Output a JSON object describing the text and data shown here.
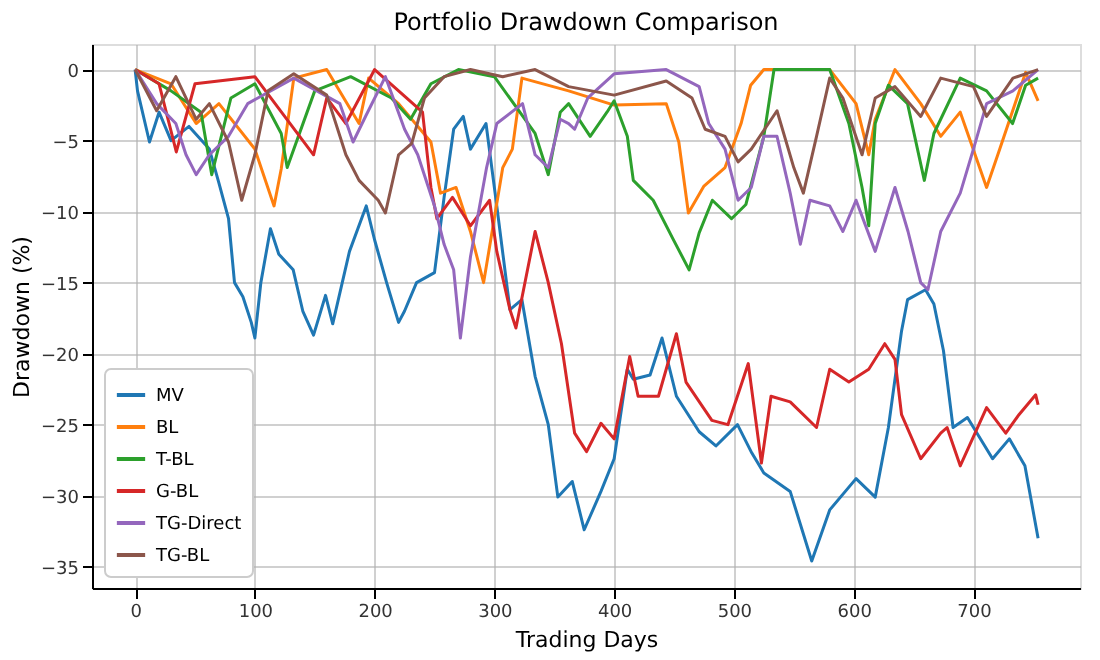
{
  "chart_data": {
    "type": "line",
    "title": "Portfolio Drawdown Comparison",
    "xlabel": "Trading Days",
    "ylabel": "Drawdown (%)",
    "xlim": [
      -36,
      789
    ],
    "ylim": [
      -36.5,
      1.8
    ],
    "xticks": [
      0,
      100,
      200,
      300,
      400,
      500,
      600,
      700
    ],
    "yticks": [
      -35,
      -30,
      -25,
      -20,
      -15,
      -10,
      -5,
      0
    ],
    "grid": true,
    "legend": "bottom left",
    "marker": "none",
    "line_style": "solid",
    "series": [
      {
        "name": "MV",
        "color": "#1f77b4",
        "x": [
          0,
          2,
          12,
          20,
          30,
          45,
          62,
          70,
          78,
          83,
          90,
          97,
          100,
          105,
          113,
          120,
          132,
          140,
          149,
          159,
          165,
          179,
          193,
          200,
          210,
          220,
          225,
          235,
          250,
          258,
          266,
          274,
          280,
          293,
          302,
          313,
          323,
          334,
          345,
          353,
          365,
          375,
          389,
          400,
          411,
          416,
          430,
          440,
          452,
          471,
          485,
          503,
          515,
          525,
          547,
          565,
          580,
          602,
          618,
          629,
          640,
          645,
          660,
          667,
          675,
          683,
          695,
          716,
          730,
          743,
          754
        ],
        "values": [
          0,
          -1.5,
          -5.1,
          -3,
          -5,
          -4,
          -5.6,
          -8,
          -10.5,
          -15,
          -16,
          -17.8,
          -18.9,
          -15,
          -11.2,
          -13,
          -14.1,
          -17,
          -18.7,
          -15.9,
          -17.9,
          -12.8,
          -9.6,
          -12,
          -15,
          -17.8,
          -17,
          -15,
          -14.3,
          -9,
          -4.2,
          -3.3,
          -5.6,
          -3.8,
          -9.6,
          -16.9,
          -16.2,
          -21.6,
          -25,
          -30.1,
          -29,
          -32.4,
          -29.7,
          -27.4,
          -21.1,
          -21.8,
          -21.5,
          -18.9,
          -23,
          -25.5,
          -26.5,
          -25,
          -27,
          -28.4,
          -29.7,
          -34.6,
          -31,
          -28.8,
          -30.1,
          -25.2,
          -18.4,
          -16.2,
          -15.5,
          -16.5,
          -19.8,
          -25.2,
          -24.5,
          -27.4,
          -26,
          -27.9,
          -33
        ]
      },
      {
        "name": "BL",
        "color": "#ff7f0e",
        "x": [
          0,
          30,
          51,
          70,
          100,
          116,
          122,
          132.5,
          160,
          187,
          195,
          220,
          247,
          255,
          268,
          280,
          291,
          307,
          315,
          323,
          362,
          400,
          443.5,
          454,
          462,
          475,
          492.6,
          506,
          514,
          525,
          580,
          602,
          612.6,
          618,
          634.5,
          656,
          672.7,
          689,
          711,
          722,
          743.6,
          754
        ],
        "values": [
          0,
          -1,
          -3.8,
          -2.4,
          -5.6,
          -9.6,
          -7,
          -0.6,
          0,
          -3.8,
          -0.6,
          -2.4,
          -5.1,
          -8.7,
          -8.3,
          -11.4,
          -15,
          -6.9,
          -5.6,
          -0.6,
          -1.5,
          -2.5,
          -2.4,
          -5.1,
          -10.1,
          -8.2,
          -6.9,
          -3.8,
          -1.1,
          0,
          0,
          -2.4,
          -6,
          -3.5,
          0,
          -2.4,
          -4.7,
          -3,
          -8.3,
          -5.6,
          -0.2,
          -2.2
        ]
      },
      {
        "name": "T-BL",
        "color": "#2ca02c",
        "x": [
          0,
          30,
          55,
          64,
          80,
          100,
          122,
          127,
          150,
          180,
          214,
          230,
          247,
          270,
          300,
          334,
          345,
          355,
          362,
          380,
          394,
          400,
          411,
          416,
          432.6,
          449,
          462.6,
          471,
          482,
          498,
          510,
          525,
          533.5,
          580,
          596,
          607,
          612.6,
          618,
          629,
          645,
          659,
          667,
          689,
          711,
          732.7,
          743.6,
          754
        ],
        "values": [
          0,
          -1.5,
          -3,
          -7.4,
          -2,
          -1,
          -4.5,
          -6.9,
          -1.5,
          -0.5,
          -2,
          -3.5,
          -1,
          0,
          -0.5,
          -4.5,
          -7.4,
          -3,
          -2.4,
          -4.7,
          -3,
          -2.2,
          -4.7,
          -7.8,
          -9.2,
          -11.9,
          -14.1,
          -11.5,
          -9.2,
          -10.5,
          -9.5,
          -4.7,
          0,
          0,
          -3.8,
          -8.3,
          -11,
          -3.8,
          -1.1,
          -2.4,
          -7.8,
          -4.5,
          -0.6,
          -1.5,
          -3.8,
          -1.1,
          -0.6
        ]
      },
      {
        "name": "G-BL",
        "color": "#d62728",
        "x": [
          0,
          20,
          34.4,
          50,
          100,
          149,
          160,
          176,
          200,
          240,
          247,
          252,
          265,
          280,
          296,
          302,
          313,
          318,
          334,
          345,
          356,
          367,
          377,
          389,
          400,
          413,
          420,
          437,
          452,
          460,
          481.6,
          495,
          512,
          523,
          531,
          547,
          569,
          580,
          596,
          612.6,
          626,
          634.5,
          640,
          656,
          672.7,
          678,
          689,
          711,
          727,
          738,
          752,
          754
        ],
        "values": [
          0,
          -1,
          -5.8,
          -1,
          -0.5,
          -6,
          -2,
          -3.8,
          0,
          -3,
          -8.3,
          -10.5,
          -9,
          -11,
          -9.2,
          -12.8,
          -16.9,
          -18.2,
          -11.4,
          -15,
          -19.3,
          -25.6,
          -26.9,
          -24.9,
          -26,
          -20.2,
          -23,
          -23,
          -18.6,
          -22,
          -24.7,
          -25,
          -20.7,
          -27.7,
          -23,
          -23.4,
          -25.2,
          -21.1,
          -22,
          -21.1,
          -19.3,
          -20.4,
          -24.3,
          -27.4,
          -25.6,
          -25.2,
          -27.9,
          -23.8,
          -25.6,
          -24.3,
          -22.9,
          -23.6
        ]
      },
      {
        "name": "TG-Direct",
        "color": "#9467bd",
        "x": [
          0,
          18,
          34,
          42.5,
          51,
          62,
          78,
          94,
          132.5,
          171,
          182,
          193,
          209,
          225,
          236,
          250,
          258,
          266,
          271.6,
          280,
          293.5,
          302,
          323.5,
          334,
          345,
          355,
          362,
          367,
          378,
          400,
          443.5,
          471,
          479,
          492.6,
          503.5,
          514.5,
          525,
          536,
          547,
          555.5,
          563.5,
          580,
          591,
          602,
          618,
          634.5,
          645.4,
          656,
          662,
          672.7,
          689,
          700,
          711,
          733,
          754
        ],
        "values": [
          0,
          -2.4,
          -3.8,
          -6,
          -7.4,
          -6,
          -4.7,
          -2.4,
          -0.6,
          -2.4,
          -5.1,
          -3.2,
          -0.5,
          -4.2,
          -6,
          -9.6,
          -12.3,
          -14.1,
          -18.9,
          -13.2,
          -6.9,
          -3.8,
          -2.4,
          -6,
          -6.9,
          -3.5,
          -3.8,
          -4.2,
          -2,
          -0.3,
          0,
          -1.2,
          -3.8,
          -5.6,
          -9.2,
          -8.3,
          -4.7,
          -4.7,
          -8.7,
          -12.3,
          -9.2,
          -9.6,
          -11.4,
          -9.2,
          -12.8,
          -8.3,
          -11.4,
          -15,
          -15.5,
          -11.4,
          -8.7,
          -5.6,
          -2.4,
          -1.5,
          0
        ]
      },
      {
        "name": "TG-BL",
        "color": "#8c564b",
        "x": [
          0,
          18,
          34,
          51,
          62,
          78,
          89,
          100,
          111,
          132.5,
          160,
          176,
          187,
          203,
          209,
          220,
          231,
          241.6,
          258,
          280,
          307,
          334,
          362,
          400,
          443.5,
          465,
          476,
          492.6,
          503.5,
          514.5,
          536,
          550,
          558,
          569,
          580,
          591,
          607,
          618,
          634.5,
          656,
          672.7,
          700,
          711,
          733,
          754
        ],
        "values": [
          0,
          -2.9,
          -0.5,
          -3.5,
          -2.4,
          -5.1,
          -9.2,
          -6,
          -1.5,
          -0.3,
          -1.8,
          -6,
          -7.8,
          -9.2,
          -10.1,
          -6,
          -5.2,
          -2,
          -0.5,
          0,
          -0.5,
          0,
          -1.2,
          -1.8,
          -0.8,
          -2,
          -4.2,
          -4.7,
          -6.5,
          -5.6,
          -2.9,
          -6.9,
          -8.7,
          -4.7,
          -0.6,
          -2,
          -6,
          -2,
          -1.2,
          -3.3,
          -0.6,
          -1.2,
          -3.3,
          -0.6,
          0
        ]
      }
    ]
  }
}
